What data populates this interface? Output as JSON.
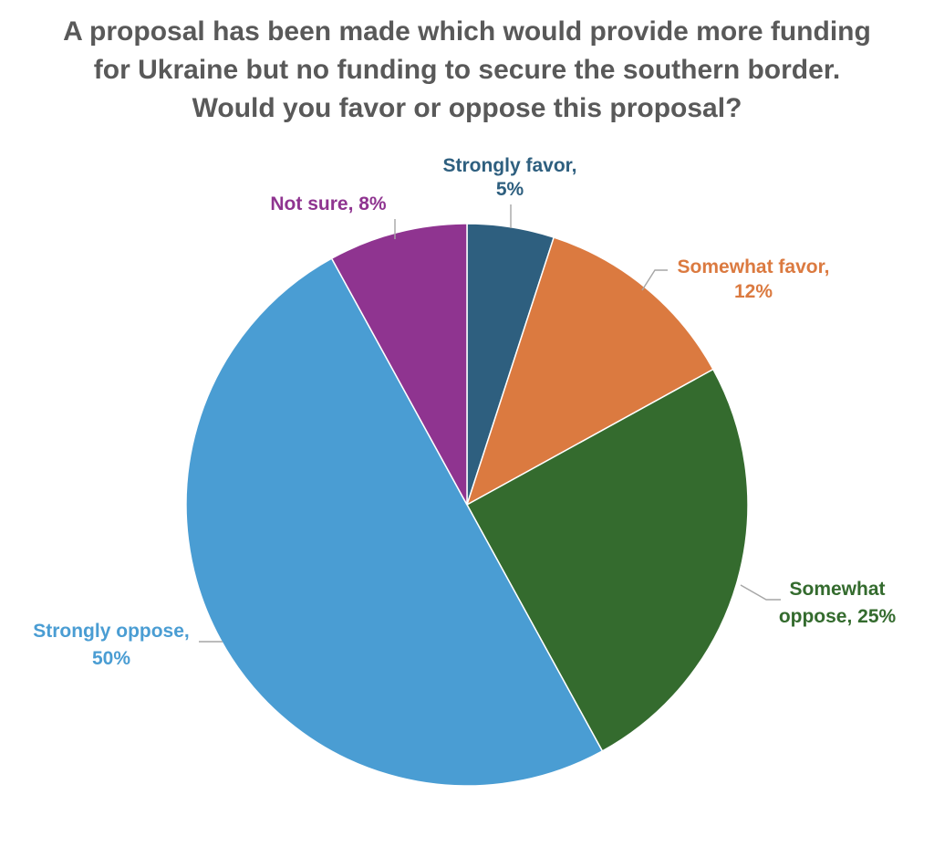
{
  "chart_data": {
    "type": "pie",
    "title": "A proposal has been made which would provide more funding for Ukraine but no funding to secure the southern border. Would you favor or oppose this proposal?",
    "slices": [
      {
        "label": "Strongly favor",
        "value": 5,
        "value_label": "5%",
        "color": "#2e5f7f",
        "label_text": [
          "Strongly favor,",
          "5%"
        ]
      },
      {
        "label": "Somewhat favor",
        "value": 12,
        "value_label": "12%",
        "color": "#db7a40",
        "label_text": [
          "Somewhat favor,",
          "12%"
        ]
      },
      {
        "label": "Somewhat oppose",
        "value": 25,
        "value_label": "25%",
        "color": "#346b2e",
        "label_text": [
          "Somewhat",
          "oppose, 25%"
        ]
      },
      {
        "label": "Strongly oppose",
        "value": 50,
        "value_label": "50%",
        "color": "#4a9dd3",
        "label_text": [
          "Strongly oppose,",
          "50%"
        ]
      },
      {
        "label": "Not sure",
        "value": 8,
        "value_label": "8%",
        "color": "#8f3490",
        "label_text": [
          "Not sure, 8%"
        ]
      }
    ],
    "start_angle_deg": 0,
    "direction": "clockwise",
    "legend": "none",
    "data_labels": "outside-with-leader-lines"
  }
}
